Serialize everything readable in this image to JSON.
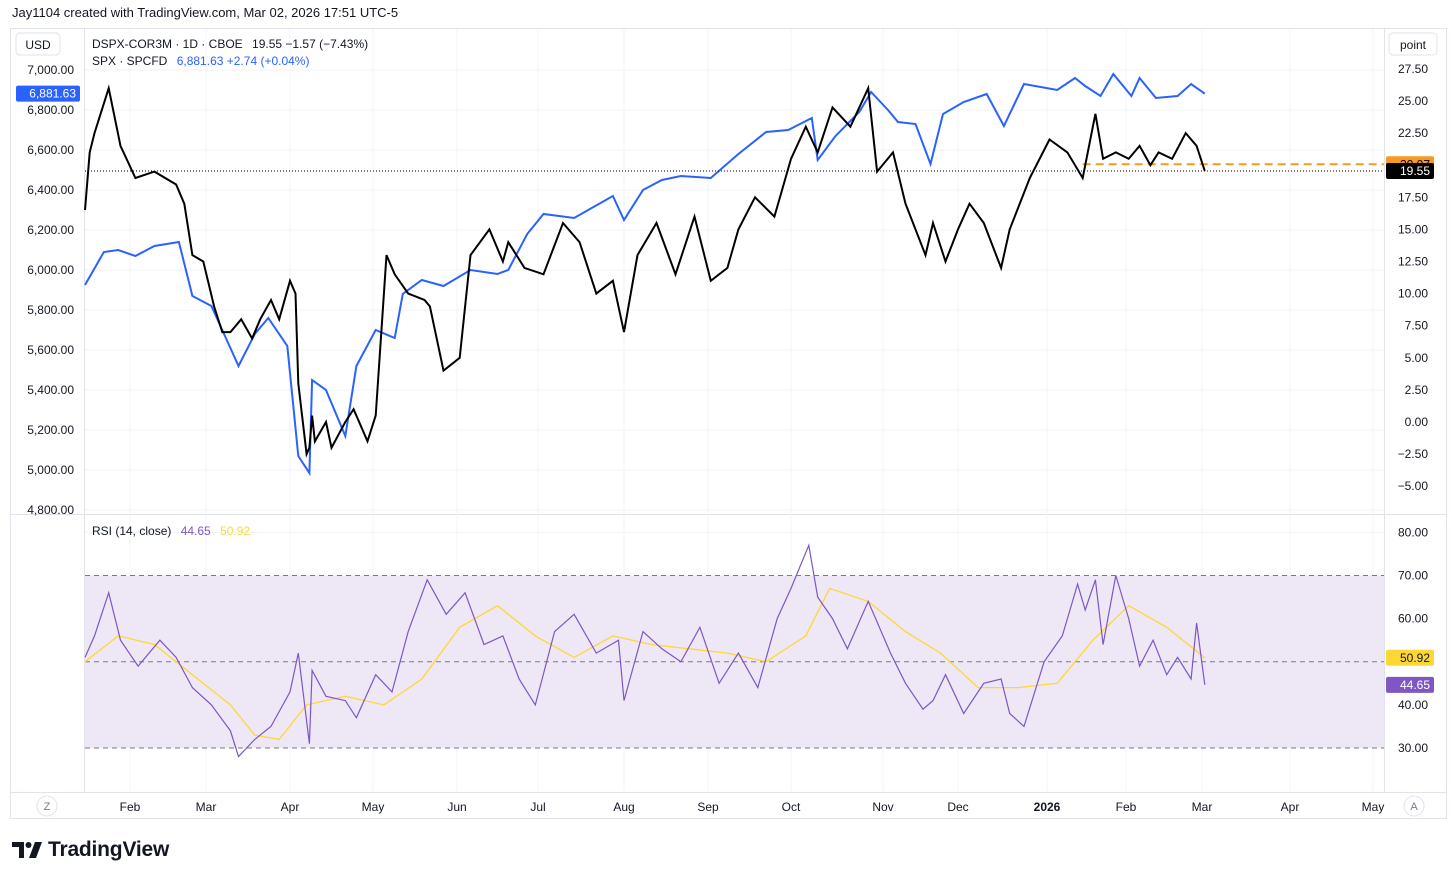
{
  "header": {
    "credit": "Jay1104 created with TradingView.com, Mar 02, 2026 17:51 UTC-5"
  },
  "scales": {
    "left_unit": "USD",
    "right_unit": "point"
  },
  "legend": {
    "line1_symbol": "DSPX-COR3M · 1D · CBOE",
    "line1_values": "19.55  −1.57 (−7.43%)",
    "line2_symbol": "SPX · SPCFD",
    "line2_values": "6,881.63  +2.74 (+0.04%)",
    "rsi_label": "RSI (14, close)",
    "rsi_value": "44.65",
    "rsi_ma_value": "50.92"
  },
  "price_tags": {
    "spx": "6,881.63",
    "dspx_prev": "20.07",
    "dspx": "19.55",
    "rsi_ma": "50.92",
    "rsi": "44.65"
  },
  "bottom_buttons": {
    "zoom": "Z",
    "auto": "A"
  },
  "brand": "TradingView",
  "colors": {
    "spx": "#2962ff",
    "dspx": "#000000",
    "rsi": "#7e57c2",
    "rsi_ma": "#fdd835",
    "rsi_band": "#ede7f6",
    "orange": "#f59a23"
  },
  "chart_data": [
    {
      "type": "line",
      "title": "",
      "x_ticks": [
        "Feb",
        "Mar",
        "Apr",
        "May",
        "Jun",
        "Jul",
        "Aug",
        "Sep",
        "Oct",
        "Nov",
        "Dec",
        "2026",
        "Feb",
        "Mar",
        "Apr",
        "May"
      ],
      "x_range": [
        "2025-01-13",
        "2026-05-15"
      ],
      "left_axis": {
        "unit": "USD",
        "range": [
          4800,
          7100
        ],
        "ticks": [
          "4,800.00",
          "5,000.00",
          "5,200.00",
          "5,400.00",
          "5,600.00",
          "5,800.00",
          "6,000.00",
          "6,200.00",
          "6,400.00",
          "6,600.00",
          "6,800.00",
          "7,000.00"
        ]
      },
      "right_axis": {
        "unit": "point",
        "range": [
          -5,
          27.5
        ],
        "ticks": [
          "27.50",
          "25.00",
          "22.50",
          "20.00",
          "17.50",
          "15.00",
          "12.50",
          "10.00",
          "7.50",
          "5.00",
          "2.50",
          "0.00",
          "−2.50",
          "−5.00"
        ]
      },
      "series": [
        {
          "name": "SPX · SPCFD",
          "axis": "left",
          "color": "#2962ff",
          "x": [
            "2025-01-13",
            "2025-01-21",
            "2025-01-27",
            "2025-02-03",
            "2025-02-10",
            "2025-02-19",
            "2025-02-24",
            "2025-03-03",
            "2025-03-10",
            "2025-03-13",
            "2025-03-19",
            "2025-03-24",
            "2025-03-31",
            "2025-04-04",
            "2025-04-08",
            "2025-04-09",
            "2025-04-14",
            "2025-04-21",
            "2025-04-25",
            "2025-05-02",
            "2025-05-09",
            "2025-05-12",
            "2025-05-19",
            "2025-05-27",
            "2025-06-06",
            "2025-06-16",
            "2025-06-20",
            "2025-06-27",
            "2025-07-03",
            "2025-07-14",
            "2025-07-28",
            "2025-08-01",
            "2025-08-08",
            "2025-08-15",
            "2025-08-22",
            "2025-09-02",
            "2025-09-12",
            "2025-09-22",
            "2025-09-30",
            "2025-10-08",
            "2025-10-10",
            "2025-10-16",
            "2025-10-24",
            "2025-10-28",
            "2025-11-03",
            "2025-11-07",
            "2025-11-14",
            "2025-11-20",
            "2025-11-25",
            "2025-12-03",
            "2025-12-11",
            "2025-12-17",
            "2025-12-24",
            "2026-01-05",
            "2026-01-12",
            "2026-01-16",
            "2026-01-22",
            "2026-01-27",
            "2026-02-03",
            "2026-02-06",
            "2026-02-12",
            "2026-02-20",
            "2026-02-25",
            "2026-03-02"
          ],
          "values": [
            5925,
            6090,
            6100,
            6070,
            6120,
            6140,
            5870,
            5820,
            5610,
            5520,
            5680,
            5760,
            5620,
            5070,
            4985,
            5450,
            5400,
            5170,
            5520,
            5700,
            5660,
            5880,
            5950,
            5920,
            6000,
            5980,
            6000,
            6180,
            6280,
            6260,
            6370,
            6250,
            6400,
            6450,
            6470,
            6460,
            6580,
            6690,
            6700,
            6760,
            6550,
            6670,
            6790,
            6890,
            6800,
            6740,
            6730,
            6530,
            6780,
            6840,
            6880,
            6720,
            6930,
            6900,
            6960,
            6920,
            6870,
            6980,
            6870,
            6960,
            6860,
            6870,
            6930,
            6881.63
          ]
        },
        {
          "name": "DSPX-COR3M · 1D · CBOE",
          "axis": "right",
          "color": "#000000",
          "x": [
            "2025-01-13",
            "2025-01-15",
            "2025-01-17",
            "2025-01-23",
            "2025-01-28",
            "2025-02-03",
            "2025-02-10",
            "2025-02-18",
            "2025-02-21",
            "2025-02-24",
            "2025-02-28",
            "2025-03-04",
            "2025-03-07",
            "2025-03-10",
            "2025-03-14",
            "2025-03-18",
            "2025-03-21",
            "2025-03-25",
            "2025-03-28",
            "2025-04-01",
            "2025-04-03",
            "2025-04-04",
            "2025-04-07",
            "2025-04-08",
            "2025-04-09",
            "2025-04-10",
            "2025-04-14",
            "2025-04-16",
            "2025-04-21",
            "2025-04-24",
            "2025-04-29",
            "2025-05-02",
            "2025-05-06",
            "2025-05-09",
            "2025-05-14",
            "2025-05-20",
            "2025-05-22",
            "2025-05-27",
            "2025-06-02",
            "2025-06-06",
            "2025-06-13",
            "2025-06-18",
            "2025-06-20",
            "2025-06-26",
            "2025-07-03",
            "2025-07-10",
            "2025-07-16",
            "2025-07-22",
            "2025-07-28",
            "2025-08-01",
            "2025-08-06",
            "2025-08-13",
            "2025-08-20",
            "2025-08-27",
            "2025-09-02",
            "2025-09-08",
            "2025-09-12",
            "2025-09-18",
            "2025-09-25",
            "2025-10-01",
            "2025-10-06",
            "2025-10-10",
            "2025-10-15",
            "2025-10-21",
            "2025-10-27",
            "2025-10-30",
            "2025-11-05",
            "2025-11-10",
            "2025-11-18",
            "2025-11-21",
            "2025-11-26",
            "2025-12-01",
            "2025-12-05",
            "2025-12-10",
            "2025-12-16",
            "2025-12-19",
            "2025-12-26",
            "2026-01-02",
            "2026-01-09",
            "2026-01-15",
            "2026-01-20",
            "2026-01-23",
            "2026-01-28",
            "2026-02-02",
            "2026-02-06",
            "2026-02-10",
            "2026-02-13",
            "2026-02-18",
            "2026-02-23",
            "2026-02-27",
            "2026-03-02"
          ],
          "values": [
            16.5,
            21.0,
            22.5,
            26.0,
            21.5,
            19.0,
            19.5,
            18.5,
            17.0,
            13.0,
            12.5,
            9.0,
            7.0,
            7.0,
            8.0,
            6.5,
            8.0,
            9.5,
            8.0,
            11.0,
            10.0,
            3.0,
            -2.5,
            -2.0,
            0.5,
            -1.5,
            0.0,
            -2.0,
            0.0,
            1.0,
            -1.5,
            0.5,
            13.0,
            11.5,
            10.0,
            9.5,
            9.0,
            4.0,
            5.0,
            13.0,
            15.0,
            12.5,
            14.0,
            12.0,
            11.5,
            15.5,
            14.0,
            10.0,
            11.0,
            7.0,
            13.0,
            15.5,
            11.5,
            16.0,
            11.0,
            12.0,
            15.0,
            17.5,
            16.0,
            20.5,
            23.0,
            21.0,
            24.5,
            23.0,
            26.0,
            19.5,
            21.0,
            17.0,
            13.0,
            15.5,
            12.5,
            15.0,
            17.0,
            15.5,
            12.0,
            15.0,
            19.0,
            22.0,
            21.0,
            19.0,
            24.0,
            20.5,
            21.0,
            20.5,
            21.5,
            20.0,
            21.0,
            20.5,
            22.5,
            21.5,
            19.55
          ]
        }
      ]
    },
    {
      "type": "line",
      "title": "",
      "series_label": "RSI (14, close)",
      "y_range": [
        24,
        82
      ],
      "y_ticks": [
        "30.00",
        "40.00",
        "60.00",
        "70.00",
        "80.00"
      ],
      "band": [
        30,
        70
      ],
      "midline": 50,
      "series": [
        {
          "name": "RSI (14, close)",
          "color": "#7e57c2",
          "x": [
            "2025-01-13",
            "2025-01-17",
            "2025-01-23",
            "2025-01-28",
            "2025-02-04",
            "2025-02-12",
            "2025-02-18",
            "2025-02-24",
            "2025-03-03",
            "2025-03-10",
            "2025-03-13",
            "2025-03-19",
            "2025-03-25",
            "2025-04-01",
            "2025-04-04",
            "2025-04-08",
            "2025-04-09",
            "2025-04-14",
            "2025-04-21",
            "2025-04-25",
            "2025-05-02",
            "2025-05-08",
            "2025-05-14",
            "2025-05-21",
            "2025-05-28",
            "2025-06-04",
            "2025-06-11",
            "2025-06-18",
            "2025-06-24",
            "2025-06-30",
            "2025-07-07",
            "2025-07-14",
            "2025-07-22",
            "2025-07-30",
            "2025-08-01",
            "2025-08-08",
            "2025-08-15",
            "2025-08-22",
            "2025-08-29",
            "2025-09-05",
            "2025-09-12",
            "2025-09-19",
            "2025-09-26",
            "2025-10-01",
            "2025-10-07",
            "2025-10-10",
            "2025-10-15",
            "2025-10-20",
            "2025-10-27",
            "2025-11-04",
            "2025-11-10",
            "2025-11-17",
            "2025-11-21",
            "2025-11-26",
            "2025-12-03",
            "2025-12-10",
            "2025-12-16",
            "2025-12-19",
            "2025-12-24",
            "2025-12-31",
            "2026-01-07",
            "2026-01-13",
            "2026-01-16",
            "2026-01-20",
            "2026-01-23",
            "2026-01-28",
            "2026-02-02",
            "2026-02-06",
            "2026-02-11",
            "2026-02-16",
            "2026-02-20",
            "2026-02-25",
            "2026-02-27",
            "2026-03-02"
          ],
          "values": [
            51,
            56,
            66,
            55,
            49,
            55,
            51,
            44,
            40,
            34,
            28,
            32,
            35,
            43,
            52,
            31,
            48,
            42,
            41,
            37,
            47,
            43,
            57,
            69,
            61,
            66,
            54,
            56,
            46,
            40,
            57,
            61,
            52,
            55,
            41,
            57,
            53,
            50,
            58,
            45,
            52,
            44,
            60,
            67,
            77,
            65,
            60,
            53,
            64,
            52,
            45,
            39,
            41,
            47,
            38,
            45,
            46,
            38,
            35,
            50,
            56,
            68,
            62,
            69,
            54,
            70,
            60,
            49,
            55,
            47,
            51,
            46,
            59,
            44.65
          ]
        },
        {
          "name": "RSI MA",
          "color": "#fdd835",
          "x": [
            "2025-01-13",
            "2025-01-27",
            "2025-02-10",
            "2025-02-24",
            "2025-03-10",
            "2025-03-19",
            "2025-03-28",
            "2025-04-07",
            "2025-04-21",
            "2025-05-05",
            "2025-05-19",
            "2025-06-02",
            "2025-06-16",
            "2025-06-30",
            "2025-07-14",
            "2025-07-28",
            "2025-08-11",
            "2025-08-25",
            "2025-09-08",
            "2025-09-22",
            "2025-10-06",
            "2025-10-14",
            "2025-10-27",
            "2025-11-10",
            "2025-11-24",
            "2025-12-08",
            "2025-12-22",
            "2026-01-05",
            "2026-01-19",
            "2026-02-02",
            "2026-02-16",
            "2026-03-02"
          ],
          "values": [
            50,
            56,
            54,
            47,
            40,
            33,
            32,
            40,
            42,
            40,
            46,
            58,
            63,
            56,
            51,
            56,
            54,
            53,
            52,
            50,
            56,
            67,
            64,
            57,
            52,
            44,
            44,
            45,
            55,
            63,
            58,
            50.92
          ]
        }
      ]
    }
  ]
}
